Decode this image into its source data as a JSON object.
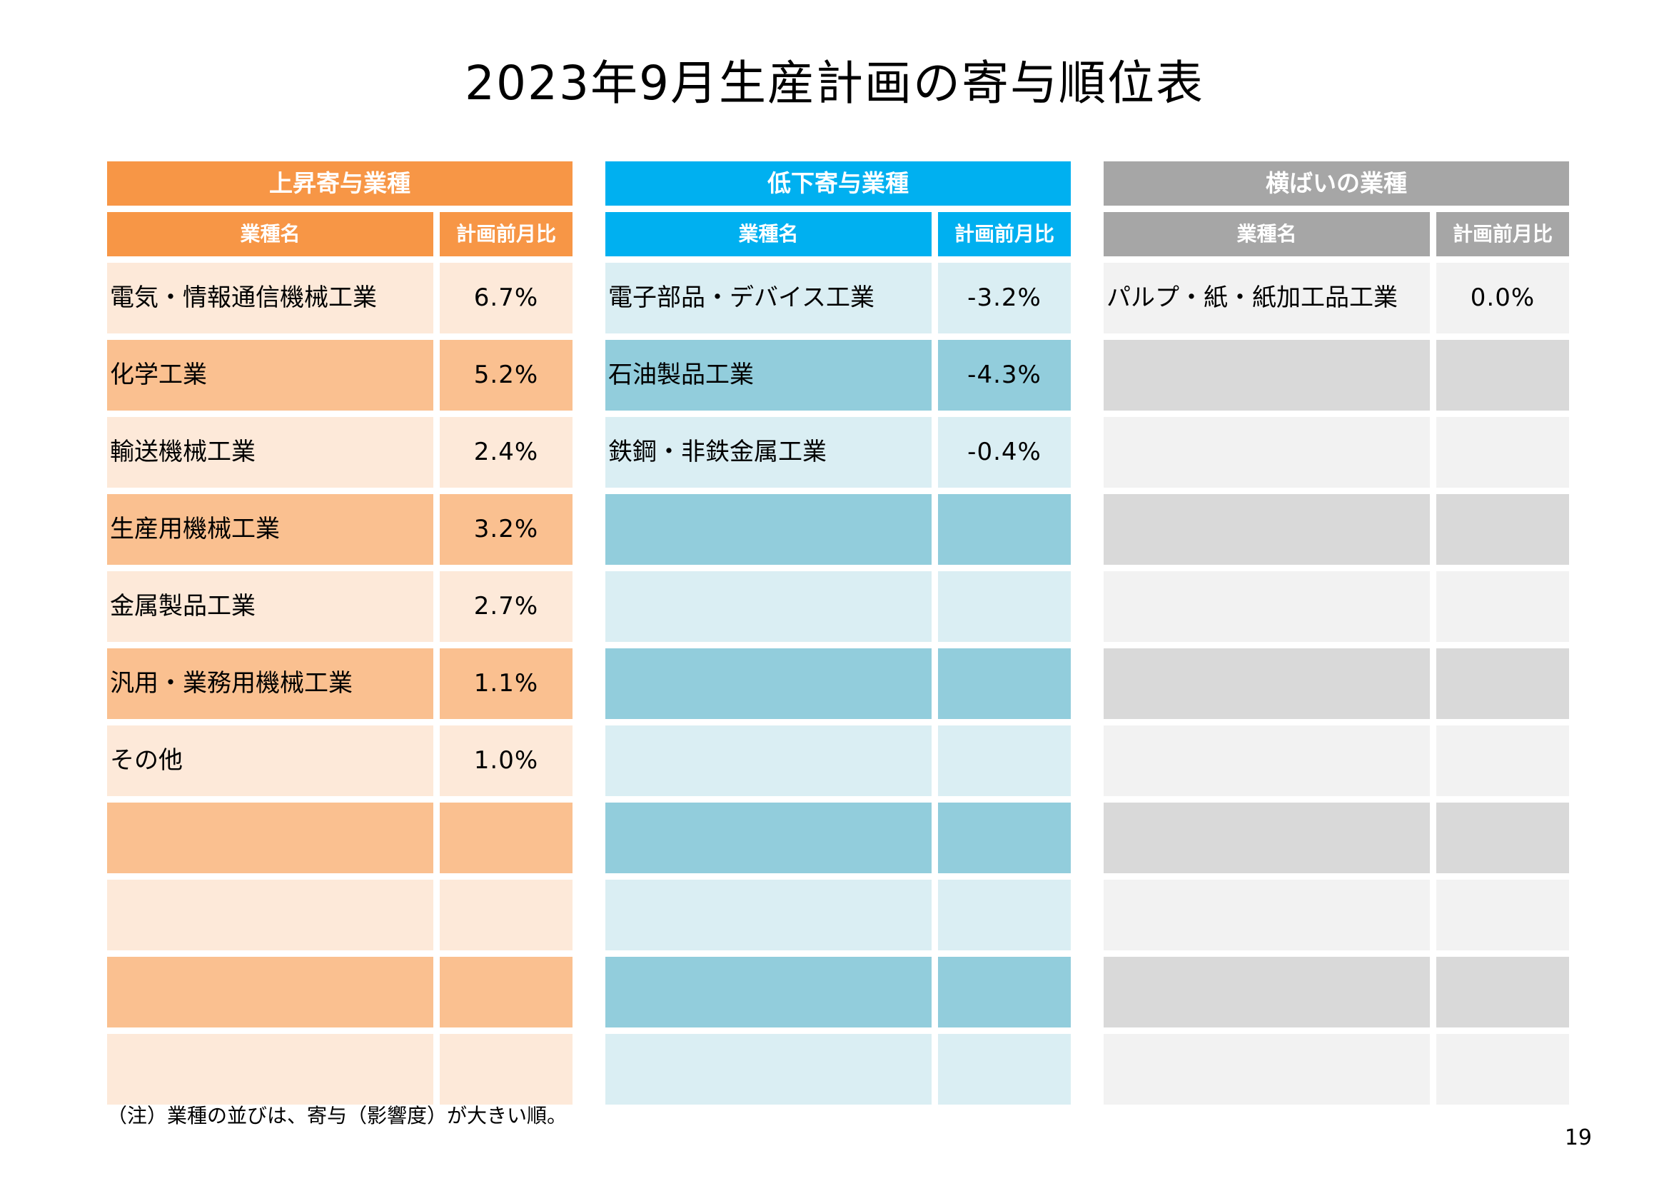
{
  "title": "2023年9月生産計画の寄与順位表",
  "note": "（注）業種の並びは、寄与（影響度）が大きい順。",
  "page_number": "19",
  "column_headers": {
    "name": "業種名",
    "ratio": "計画前月比"
  },
  "colors": {
    "rise": {
      "header": "#F79646",
      "light": "#FDE9D9",
      "dark": "#FAC090"
    },
    "fall": {
      "header": "#00B0F0",
      "light": "#DAEEF3",
      "dark": "#92CDDC"
    },
    "flat": {
      "header": "#A6A6A6",
      "light": "#F2F2F2",
      "dark": "#D9D9D9"
    }
  },
  "tables": [
    {
      "key": "rise",
      "title": "上昇寄与業種",
      "rows": [
        {
          "name": "電気・情報通信機械工業",
          "value": "6.7%"
        },
        {
          "name": "化学工業",
          "value": "5.2%"
        },
        {
          "name": "輸送機械工業",
          "value": "2.4%"
        },
        {
          "name": "生産用機械工業",
          "value": "3.2%"
        },
        {
          "name": "金属製品工業",
          "value": "2.7%"
        },
        {
          "name": "汎用・業務用機械工業",
          "value": "1.1%"
        },
        {
          "name": "その他",
          "value": "1.0%"
        },
        {
          "name": "",
          "value": ""
        },
        {
          "name": "",
          "value": ""
        },
        {
          "name": "",
          "value": ""
        },
        {
          "name": "",
          "value": ""
        }
      ]
    },
    {
      "key": "fall",
      "title": "低下寄与業種",
      "rows": [
        {
          "name": "電子部品・デバイス工業",
          "value": "-3.2%"
        },
        {
          "name": "石油製品工業",
          "value": "-4.3%"
        },
        {
          "name": "鉄鋼・非鉄金属工業",
          "value": "-0.4%"
        },
        {
          "name": "",
          "value": ""
        },
        {
          "name": "",
          "value": ""
        },
        {
          "name": "",
          "value": ""
        },
        {
          "name": "",
          "value": ""
        },
        {
          "name": "",
          "value": ""
        },
        {
          "name": "",
          "value": ""
        },
        {
          "name": "",
          "value": ""
        },
        {
          "name": "",
          "value": ""
        }
      ]
    },
    {
      "key": "flat",
      "title": "横ばいの業種",
      "rows": [
        {
          "name": "パルプ・紙・紙加工品工業",
          "value": "0.0%"
        },
        {
          "name": "",
          "value": ""
        },
        {
          "name": "",
          "value": ""
        },
        {
          "name": "",
          "value": ""
        },
        {
          "name": "",
          "value": ""
        },
        {
          "name": "",
          "value": ""
        },
        {
          "name": "",
          "value": ""
        },
        {
          "name": "",
          "value": ""
        },
        {
          "name": "",
          "value": ""
        },
        {
          "name": "",
          "value": ""
        },
        {
          "name": "",
          "value": ""
        }
      ]
    }
  ]
}
